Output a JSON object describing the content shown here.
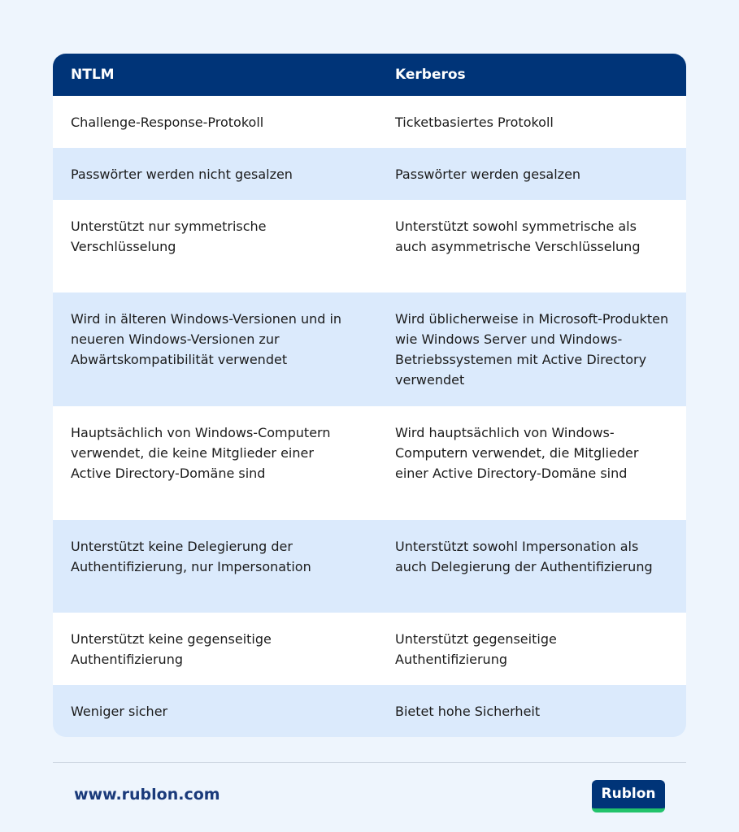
{
  "table": {
    "header": [
      "NTLM",
      "Kerberos"
    ],
    "rows": [
      [
        "Challenge-Response-Protokoll",
        "Ticketbasiertes Protokoll"
      ],
      [
        "Passwörter werden nicht gesalzen",
        "Passwörter werden gesalzen"
      ],
      [
        "Unterstützt nur symmetrische Verschlüsselung",
        "Unterstützt sowohl symmetrische als auch asymmetrische Verschlüsselung"
      ],
      [
        "Wird in älteren Windows-Versionen und in neueren Windows-Versionen zur Abwärtskompatibilität verwendet",
        "Wird üblicherweise in Microsoft-Produkten wie Windows Server und Windows-Betriebssystemen mit Active Directory verwendet"
      ],
      [
        "Hauptsächlich von Windows-Computern verwendet, die keine Mitglieder einer Active Directory-Domäne sind",
        "Wird hauptsächlich von Windows-Computern verwendet, die Mitglieder einer Active Directory-Domäne sind"
      ],
      [
        "Unterstützt keine Delegierung der Authentifizierung, nur Impersonation",
        "Unterstützt sowohl Impersonation als auch Delegierung der Authentifizierung"
      ],
      [
        "Unterstützt keine gegenseitige Authentifizierung",
        "Unterstützt gegenseitige Authentifizierung"
      ],
      [
        "Weniger sicher",
        "Bietet hohe Sicherheit"
      ]
    ]
  },
  "footer": {
    "url": "www.rublon.com",
    "logo": "Rublon"
  }
}
